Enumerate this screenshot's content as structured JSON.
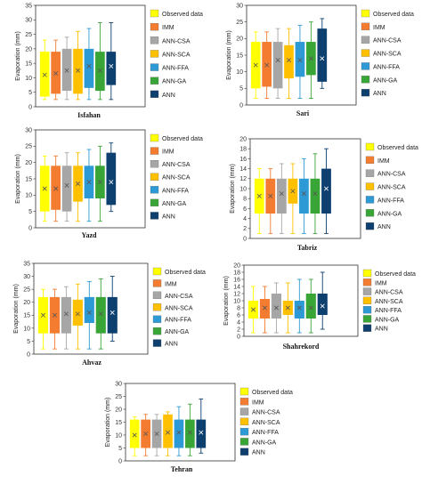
{
  "chart_data": [
    {
      "type": "box",
      "title": "Isfahan",
      "ylabel": "Evaporation (mm)",
      "ylim": [
        0,
        35
      ],
      "yticks": [
        0,
        5,
        10,
        15,
        20,
        25,
        30,
        35
      ],
      "legend": "right",
      "series": [
        {
          "name": "Observed data",
          "color": "#FFFF00",
          "min": 2.5,
          "q1": 3.5,
          "mean": 11,
          "q3": 19,
          "max": 23
        },
        {
          "name": "IMM",
          "color": "#F47C30",
          "min": 2.5,
          "q1": 4.5,
          "mean": 11.5,
          "q3": 19,
          "max": 23
        },
        {
          "name": "ANN-CSA",
          "color": "#A6A6A6",
          "min": 2.5,
          "q1": 5.5,
          "mean": 12.5,
          "q3": 20,
          "max": 24
        },
        {
          "name": "ANN-SCA",
          "color": "#FFC000",
          "min": 2.5,
          "q1": 4.5,
          "mean": 12.5,
          "q3": 20,
          "max": 26
        },
        {
          "name": "ANN-FFA",
          "color": "#2E9AD5",
          "min": 2.5,
          "q1": 6.5,
          "mean": 14,
          "q3": 20,
          "max": 27
        },
        {
          "name": "ANN-GA",
          "color": "#3AA537",
          "min": 2.5,
          "q1": 5.5,
          "mean": 12.5,
          "q3": 19,
          "max": 29
        },
        {
          "name": "ANN",
          "color": "#0D3F6F",
          "min": 2.5,
          "q1": 7.5,
          "mean": 14,
          "q3": 19,
          "max": 29
        }
      ]
    },
    {
      "type": "box",
      "title": "Sari",
      "ylabel": "Evaporation (mm)",
      "ylim": [
        0,
        30
      ],
      "yticks": [
        0,
        5,
        10,
        15,
        20,
        25,
        30
      ],
      "legend": "right",
      "series": [
        {
          "name": "Observed data",
          "color": "#FFFF00",
          "min": 2,
          "q1": 5,
          "mean": 12,
          "q3": 19,
          "max": 22
        },
        {
          "name": "IMM",
          "color": "#F47C30",
          "min": 2,
          "q1": 5.5,
          "mean": 12,
          "q3": 19,
          "max": 22
        },
        {
          "name": "ANN-CSA",
          "color": "#A6A6A6",
          "min": 2,
          "q1": 5,
          "mean": 13.5,
          "q3": 19,
          "max": 23
        },
        {
          "name": "ANN-SCA",
          "color": "#FFC000",
          "min": 2,
          "q1": 8,
          "mean": 13.5,
          "q3": 18,
          "max": 23
        },
        {
          "name": "ANN-FFA",
          "color": "#2E9AD5",
          "min": 2,
          "q1": 8.5,
          "mean": 13.5,
          "q3": 19,
          "max": 24
        },
        {
          "name": "ANN-GA",
          "color": "#3AA537",
          "min": 2,
          "q1": 9,
          "mean": 14,
          "q3": 19,
          "max": 25
        },
        {
          "name": "ANN",
          "color": "#0D3F6F",
          "min": 5,
          "q1": 7,
          "mean": 14,
          "q3": 23,
          "max": 26
        }
      ]
    },
    {
      "type": "box",
      "title": "Yazd",
      "ylabel": "Evaporation (mm)",
      "ylim": [
        0,
        30
      ],
      "yticks": [
        0,
        5,
        10,
        15,
        20,
        25,
        30
      ],
      "legend": "right",
      "series": [
        {
          "name": "Observed data",
          "color": "#FFFF00",
          "min": 2,
          "q1": 5,
          "mean": 12,
          "q3": 19,
          "max": 22
        },
        {
          "name": "IMM",
          "color": "#F47C30",
          "min": 2,
          "q1": 5.5,
          "mean": 12,
          "q3": 19,
          "max": 22
        },
        {
          "name": "ANN-CSA",
          "color": "#A6A6A6",
          "min": 2,
          "q1": 5,
          "mean": 13,
          "q3": 19,
          "max": 23
        },
        {
          "name": "ANN-SCA",
          "color": "#FFC000",
          "min": 2,
          "q1": 8,
          "mean": 13.5,
          "q3": 19,
          "max": 23
        },
        {
          "name": "ANN-FFA",
          "color": "#2E9AD5",
          "min": 2,
          "q1": 9,
          "mean": 14,
          "q3": 19,
          "max": 24
        },
        {
          "name": "ANN-GA",
          "color": "#3AA537",
          "min": 2,
          "q1": 9,
          "mean": 14,
          "q3": 19,
          "max": 25
        },
        {
          "name": "ANN",
          "color": "#0D3F6F",
          "min": 5,
          "q1": 7,
          "mean": 14,
          "q3": 23,
          "max": 26
        }
      ]
    },
    {
      "type": "box",
      "title": "Tabriz",
      "ylabel": "Evaporation (mm)",
      "ylim": [
        0,
        20
      ],
      "yticks": [
        0,
        2,
        4,
        6,
        8,
        10,
        12,
        14,
        16,
        18,
        20
      ],
      "legend": "right",
      "series": [
        {
          "name": "Observed data",
          "color": "#FFFF00",
          "min": 1,
          "q1": 5,
          "mean": 8.5,
          "q3": 12,
          "max": 14
        },
        {
          "name": "IMM",
          "color": "#F47C30",
          "min": 1,
          "q1": 5,
          "mean": 8.5,
          "q3": 12,
          "max": 14
        },
        {
          "name": "ANN-CSA",
          "color": "#A6A6A6",
          "min": 1,
          "q1": 5,
          "mean": 9,
          "q3": 12,
          "max": 15
        },
        {
          "name": "ANN-SCA",
          "color": "#FFC000",
          "min": 1,
          "q1": 7,
          "mean": 9.5,
          "q3": 12,
          "max": 15
        },
        {
          "name": "ANN-FFA",
          "color": "#2E9AD5",
          "min": 1,
          "q1": 5,
          "mean": 9,
          "q3": 12,
          "max": 16
        },
        {
          "name": "ANN-GA",
          "color": "#3AA537",
          "min": 1,
          "q1": 5,
          "mean": 9,
          "q3": 12,
          "max": 17
        },
        {
          "name": "ANN",
          "color": "#0D3F6F",
          "min": 1,
          "q1": 5,
          "mean": 10,
          "q3": 14,
          "max": 18
        }
      ]
    },
    {
      "type": "box",
      "title": "Ahvaz",
      "ylabel": "Evaporation (mm)",
      "ylim": [
        0,
        35
      ],
      "yticks": [
        0,
        5,
        10,
        15,
        20,
        25,
        30,
        35
      ],
      "legend": "right",
      "series": [
        {
          "name": "Observed data",
          "color": "#FFFF00",
          "min": 2,
          "q1": 8,
          "mean": 15,
          "q3": 22,
          "max": 25
        },
        {
          "name": "IMM",
          "color": "#F47C30",
          "min": 2,
          "q1": 8,
          "mean": 15,
          "q3": 22,
          "max": 25
        },
        {
          "name": "ANN-CSA",
          "color": "#A6A6A6",
          "min": 2,
          "q1": 8,
          "mean": 15.5,
          "q3": 22,
          "max": 26
        },
        {
          "name": "ANN-SCA",
          "color": "#FFC000",
          "min": 2,
          "q1": 11,
          "mean": 15.5,
          "q3": 21,
          "max": 27
        },
        {
          "name": "ANN-FFA",
          "color": "#2E9AD5",
          "min": 2,
          "q1": 12,
          "mean": 16,
          "q3": 22,
          "max": 28
        },
        {
          "name": "ANN-GA",
          "color": "#3AA537",
          "min": 2,
          "q1": 8,
          "mean": 15.5,
          "q3": 22,
          "max": 29
        },
        {
          "name": "ANN",
          "color": "#0D3F6F",
          "min": 5,
          "q1": 8,
          "mean": 16,
          "q3": 22,
          "max": 30
        }
      ]
    },
    {
      "type": "box",
      "title": "Shahrekord",
      "ylabel": "Evaporation (mm)",
      "ylim": [
        0,
        20
      ],
      "yticks": [
        0,
        2,
        4,
        6,
        8,
        10,
        12,
        14,
        16,
        18,
        20
      ],
      "legend": "right",
      "series": [
        {
          "name": "Observed data",
          "color": "#FFFF00",
          "min": 1,
          "q1": 5,
          "mean": 7.5,
          "q3": 10,
          "max": 14
        },
        {
          "name": "IMM",
          "color": "#F47C30",
          "min": 1,
          "q1": 5,
          "mean": 8,
          "q3": 10.5,
          "max": 14
        },
        {
          "name": "ANN-CSA",
          "color": "#A6A6A6",
          "min": 1,
          "q1": 5,
          "mean": 8,
          "q3": 12,
          "max": 15
        },
        {
          "name": "ANN-SCA",
          "color": "#FFC000",
          "min": 1,
          "q1": 6,
          "mean": 8,
          "q3": 10,
          "max": 15
        },
        {
          "name": "ANN-FFA",
          "color": "#2E9AD5",
          "min": 1,
          "q1": 5,
          "mean": 8,
          "q3": 10,
          "max": 16
        },
        {
          "name": "ANN-GA",
          "color": "#3AA537",
          "min": 1,
          "q1": 5,
          "mean": 8,
          "q3": 12,
          "max": 16
        },
        {
          "name": "ANN",
          "color": "#0D3F6F",
          "min": 2,
          "q1": 6,
          "mean": 8.5,
          "q3": 12,
          "max": 18
        }
      ]
    },
    {
      "type": "box",
      "title": "Tehran",
      "ylabel": "Evaporation (mm)",
      "ylim": [
        0,
        30
      ],
      "yticks": [
        0,
        5,
        10,
        15,
        20,
        25,
        30
      ],
      "legend": "right",
      "series": [
        {
          "name": "Observed data",
          "color": "#FFFF00",
          "min": 2,
          "q1": 5,
          "mean": 10,
          "q3": 16,
          "max": 17
        },
        {
          "name": "IMM",
          "color": "#F47C30",
          "min": 2,
          "q1": 5,
          "mean": 10.5,
          "q3": 16,
          "max": 18
        },
        {
          "name": "ANN-CSA",
          "color": "#A6A6A6",
          "min": 2,
          "q1": 5,
          "mean": 10.5,
          "q3": 16,
          "max": 18
        },
        {
          "name": "ANN-SCA",
          "color": "#FFC000",
          "min": 2,
          "q1": 5,
          "mean": 11,
          "q3": 18,
          "max": 19
        },
        {
          "name": "ANN-FFA",
          "color": "#2E9AD5",
          "min": 2,
          "q1": 5,
          "mean": 11,
          "q3": 16,
          "max": 21
        },
        {
          "name": "ANN-GA",
          "color": "#3AA537",
          "min": 2,
          "q1": 5,
          "mean": 11,
          "q3": 16,
          "max": 22
        },
        {
          "name": "ANN",
          "color": "#0D3F6F",
          "min": 3,
          "q1": 5,
          "mean": 11,
          "q3": 16,
          "max": 24
        }
      ]
    }
  ]
}
